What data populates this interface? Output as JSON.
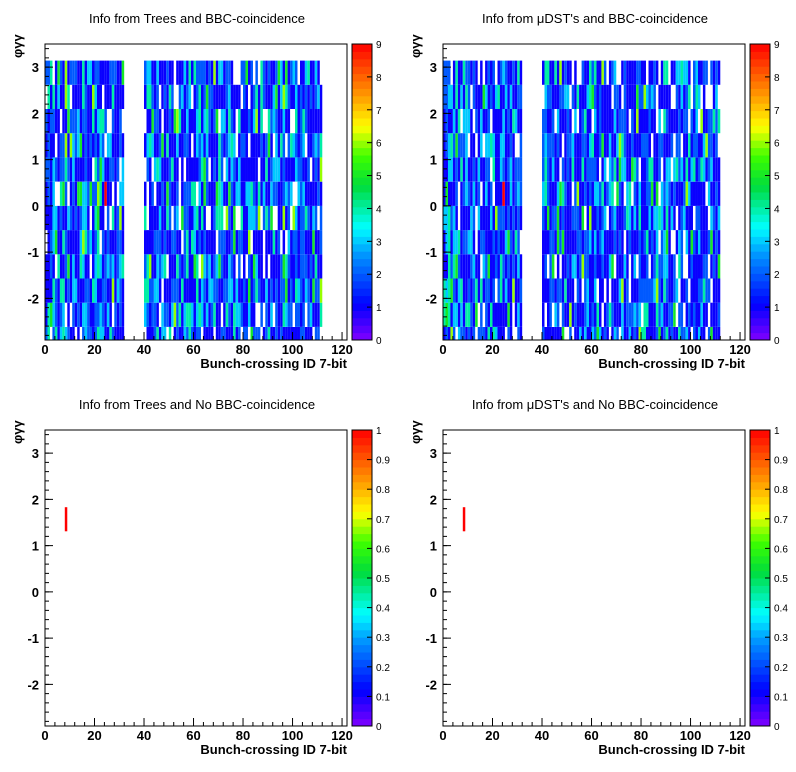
{
  "chart_data": [
    {
      "type": "heatmap",
      "title": "Info from Trees and BBC-coincidence",
      "xlabel": "Bunch-crossing ID 7-bit",
      "ylabel": "φγγ",
      "xlim": [
        0,
        122
      ],
      "ylim": [
        -2.9,
        3.5
      ],
      "zlim": [
        0,
        9
      ],
      "xticks": [
        "0",
        "20",
        "40",
        "60",
        "80",
        "100",
        "120"
      ],
      "yticks": [
        "-2",
        "-1",
        "0",
        "1",
        "2",
        "3"
      ],
      "zticks": [
        "0",
        "1",
        "2",
        "3",
        "4",
        "5",
        "6",
        "7",
        "8",
        "9"
      ],
      "filled_bunch_ranges": [
        [
          0,
          31
        ],
        [
          40,
          111
        ]
      ],
      "phi_bins": 12,
      "peak": {
        "x": 24,
        "phi": 0.0,
        "value": 9
      },
      "palette": "rainbow"
    },
    {
      "type": "heatmap",
      "title": "Info from μDST's and BBC-coincidence",
      "xlabel": "Bunch-crossing ID 7-bit",
      "ylabel": "φγγ",
      "xlim": [
        0,
        122
      ],
      "ylim": [
        -2.9,
        3.5
      ],
      "zlim": [
        0,
        9
      ],
      "xticks": [
        "0",
        "20",
        "40",
        "60",
        "80",
        "100",
        "120"
      ],
      "yticks": [
        "-2",
        "-1",
        "0",
        "1",
        "2",
        "3"
      ],
      "zticks": [
        "0",
        "1",
        "2",
        "3",
        "4",
        "5",
        "6",
        "7",
        "8",
        "9"
      ],
      "filled_bunch_ranges": [
        [
          0,
          31
        ],
        [
          40,
          111
        ]
      ],
      "phi_bins": 12,
      "peak": {
        "x": 24,
        "phi": 0.0,
        "value": 9
      },
      "palette": "rainbow"
    },
    {
      "type": "heatmap",
      "title": "Info from Trees and No BBC-coincidence",
      "xlabel": "Bunch-crossing ID 7-bit",
      "ylabel": "φγγ",
      "xlim": [
        0,
        122
      ],
      "ylim": [
        -2.9,
        3.5
      ],
      "zlim": [
        0,
        1
      ],
      "xticks": [
        "0",
        "20",
        "40",
        "60",
        "80",
        "100",
        "120"
      ],
      "yticks": [
        "-2",
        "-1",
        "0",
        "1",
        "2",
        "3"
      ],
      "zticks": [
        "0",
        "0.1",
        "0.2",
        "0.3",
        "0.4",
        "0.5",
        "0.6",
        "0.7",
        "0.8",
        "0.9",
        "1"
      ],
      "cells": [
        {
          "x": 8,
          "phi": 1.57,
          "value": 1
        }
      ],
      "palette": "rainbow"
    },
    {
      "type": "heatmap",
      "title": "Info from μDST's and No BBC-coincidence",
      "xlabel": "Bunch-crossing ID 7-bit",
      "ylabel": "φγγ",
      "xlim": [
        0,
        122
      ],
      "ylim": [
        -2.9,
        3.5
      ],
      "zlim": [
        0,
        1
      ],
      "xticks": [
        "0",
        "20",
        "40",
        "60",
        "80",
        "100",
        "120"
      ],
      "yticks": [
        "-2",
        "-1",
        "0",
        "1",
        "2",
        "3"
      ],
      "zticks": [
        "0",
        "0.1",
        "0.2",
        "0.3",
        "0.4",
        "0.5",
        "0.6",
        "0.7",
        "0.8",
        "0.9",
        "1"
      ],
      "cells": [
        {
          "x": 8,
          "phi": 1.57,
          "value": 1
        }
      ],
      "palette": "rainbow"
    }
  ]
}
